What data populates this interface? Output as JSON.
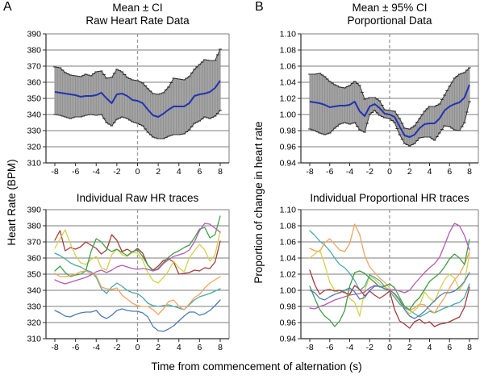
{
  "figure": {
    "panel_a_label": "A",
    "panel_b_label": "B",
    "x_axis_label": "Time from commencement of alternation (s)",
    "left_y_axis_label": "Heart Rate (BPM)",
    "right_y_axis_label": "Proportion of change in heart rate",
    "grid_color": "#7d7d7d",
    "axis_color": "#2b2b2b",
    "zero_line_color": "#9a9a9a"
  },
  "chart_data": [
    {
      "id": "mean-raw",
      "type": "line",
      "panel": "A-top",
      "title_lines": [
        "Mean ± CI",
        "Raw Heart Rate Data"
      ],
      "ylim": [
        310,
        390
      ],
      "yticks": [
        "390",
        "380",
        "370",
        "360",
        "350",
        "340",
        "330",
        "320",
        "310"
      ],
      "xlim": [
        -8,
        8
      ],
      "xticks": [
        "-8",
        "-6",
        "-4",
        "-2",
        "0",
        "2",
        "4",
        "6",
        "8"
      ],
      "zero_dashed_line": true,
      "band_fill": "#a4a4a4",
      "band_bar_color": "#8e8e8e",
      "band_cap_color": "#1f1f1f",
      "x": [
        -8,
        -7.5,
        -7,
        -6.5,
        -6,
        -5.5,
        -5,
        -4.5,
        -4,
        -3.5,
        -3,
        -2.5,
        -2,
        -1.5,
        -1,
        -0.5,
        0,
        0.5,
        1,
        1.5,
        2,
        2.5,
        3,
        3.5,
        4,
        4.5,
        5,
        5.5,
        6,
        6.5,
        7,
        7.5,
        8
      ],
      "series": [
        {
          "name": "mean",
          "color": "#2233b0",
          "values": [
            354,
            353.5,
            353,
            352.5,
            352,
            351,
            351.5,
            351.5,
            352,
            353.5,
            350,
            347,
            352.5,
            353,
            351.5,
            349,
            348.5,
            347,
            343,
            339.5,
            338.5,
            340.5,
            343,
            345,
            345,
            345,
            347,
            351.5,
            352.5,
            353,
            354,
            356.5,
            361
          ]
        },
        {
          "name": "upper_ci",
          "color": "#3a3a3a",
          "values": [
            369.5,
            369,
            366,
            364.5,
            364,
            363.5,
            365,
            364,
            366.5,
            367,
            362.5,
            363,
            368,
            366.5,
            363,
            361.5,
            361,
            359.5,
            356,
            353,
            352.5,
            353.5,
            357,
            362.5,
            362,
            361.5,
            363.5,
            368,
            371,
            374,
            373.5,
            373.5,
            380.5
          ]
        },
        {
          "name": "lower_ci",
          "color": "#3a3a3a",
          "values": [
            340,
            339.5,
            338.5,
            337.5,
            338.5,
            338.5,
            339.5,
            340,
            339.5,
            340,
            335,
            333,
            337,
            338.5,
            337.5,
            335.5,
            334.5,
            333,
            329,
            326,
            325,
            325,
            326.5,
            327.5,
            327.5,
            328,
            330.5,
            334.5,
            336,
            338.5,
            337.5,
            339,
            342.5
          ]
        }
      ]
    },
    {
      "id": "mean-proportional",
      "type": "line",
      "panel": "B-top",
      "title_lines": [
        "Mean ± 95% CI",
        "Porportional Data"
      ],
      "ylim": [
        0.94,
        1.1
      ],
      "yticks": [
        "1.10",
        "1.08",
        "1.06",
        "1.04",
        "1.02",
        "1.00",
        "0.98",
        "0.96",
        "0.94"
      ],
      "xlim": [
        -8,
        8
      ],
      "xticks": [
        "-8",
        "-6",
        "-4",
        "-2",
        "0",
        "2",
        "4",
        "6",
        "8"
      ],
      "zero_dashed_line": true,
      "band_fill": "#a4a4a4",
      "band_bar_color": "#8e8e8e",
      "band_cap_color": "#1f1f1f",
      "x": [
        -8,
        -7.5,
        -7,
        -6.5,
        -6,
        -5.5,
        -5,
        -4.5,
        -4,
        -3.5,
        -3,
        -2.5,
        -2,
        -1.5,
        -1,
        -0.5,
        0,
        0.5,
        1,
        1.5,
        2,
        2.5,
        3,
        3.5,
        4,
        4.5,
        5,
        5.5,
        6,
        6.5,
        7,
        7.5,
        8
      ],
      "series": [
        {
          "name": "mean",
          "color": "#2233b0",
          "values": [
            1.016,
            1.015,
            1.014,
            1.012,
            1.009,
            1.01,
            1.011,
            1.011,
            1.012,
            1.016,
            1.004,
            0.998,
            1.01,
            1.013,
            1.008,
            1.001,
            1.0,
            0.997,
            0.985,
            0.974,
            0.972,
            0.975,
            0.983,
            0.988,
            0.989,
            0.989,
            0.995,
            1.005,
            1.01,
            1.013,
            1.015,
            1.021,
            1.037
          ]
        },
        {
          "name": "upper_ci",
          "color": "#3a3a3a",
          "values": [
            1.05,
            1.05,
            1.051,
            1.047,
            1.041,
            1.037,
            1.034,
            1.033,
            1.036,
            1.041,
            1.036,
            1.019,
            1.021,
            1.021,
            1.017,
            1.006,
            1.005,
            1.004,
            0.995,
            0.983,
            0.982,
            0.986,
            0.995,
            1.004,
            1.01,
            1.01,
            1.013,
            1.024,
            1.035,
            1.045,
            1.05,
            1.052,
            1.058
          ]
        },
        {
          "name": "lower_ci",
          "color": "#3a3a3a",
          "values": [
            0.982,
            0.98,
            0.977,
            0.975,
            0.977,
            0.983,
            0.988,
            0.99,
            0.988,
            0.99,
            0.981,
            0.978,
            1.0,
            1.005,
            0.999,
            0.996,
            0.995,
            0.99,
            0.975,
            0.964,
            0.961,
            0.964,
            0.971,
            0.972,
            0.972,
            0.968,
            0.977,
            0.986,
            0.985,
            0.981,
            0.98,
            0.99,
            1.016
          ]
        }
      ]
    },
    {
      "id": "individual-raw",
      "type": "line",
      "panel": "A-bottom",
      "title_lines": [
        "Individual Raw HR traces"
      ],
      "ylim": [
        310,
        390
      ],
      "yticks": [
        "390",
        "380",
        "370",
        "360",
        "350",
        "340",
        "330",
        "320",
        "310"
      ],
      "xlim": [
        -8,
        8
      ],
      "xticks": [
        "-8",
        "-6",
        "-4",
        "-2",
        "0",
        "2",
        "4",
        "6",
        "8"
      ],
      "zero_dashed_line": true,
      "x": [
        -8,
        -7.5,
        -7,
        -6.5,
        -6,
        -5.5,
        -5,
        -4.5,
        -4,
        -3.5,
        -3,
        -2.5,
        -2,
        -1.5,
        -1,
        -0.5,
        0,
        0.5,
        1,
        1.5,
        2,
        2.5,
        3,
        3.5,
        4,
        4.5,
        5,
        5.5,
        6,
        6.5,
        7,
        7.5,
        8
      ],
      "series": [
        {
          "name": "trace-red",
          "color": "#a43c3c",
          "values": [
            371,
            377,
            364.5,
            366.5,
            365.5,
            367,
            370,
            368,
            366,
            362.5,
            365,
            374.5,
            371,
            364,
            365.5,
            363.5,
            366,
            363,
            355.5,
            352.5,
            355,
            358.5,
            359.5,
            357.5,
            350,
            350.5,
            351,
            352.5,
            352,
            354,
            353.5,
            357.5,
            370.5
          ]
        },
        {
          "name": "trace-yellow",
          "color": "#d6d04e",
          "values": [
            366,
            372,
            377.5,
            369,
            361.5,
            357,
            356,
            359,
            361,
            354,
            352.5,
            362,
            365.5,
            362,
            361,
            363.5,
            363,
            358.5,
            351,
            346,
            344.5,
            348,
            352,
            358,
            354,
            351.5,
            360,
            364.5,
            368.5,
            365,
            358,
            362,
            376.5
          ]
        },
        {
          "name": "trace-green",
          "color": "#3f9f46",
          "values": [
            352,
            355,
            351,
            348.5,
            349.5,
            350,
            352,
            364,
            372,
            370,
            366,
            364,
            365.5,
            363.5,
            361.5,
            364,
            365,
            361,
            355.5,
            352,
            353.5,
            357,
            360.5,
            363,
            364.5,
            366.5,
            368,
            372.5,
            378,
            379,
            372.5,
            374.5,
            386
          ]
        },
        {
          "name": "trace-teal",
          "color": "#4aa9a9",
          "values": [
            363,
            361.5,
            359.5,
            357,
            355.5,
            354.5,
            352.5,
            351.5,
            348,
            341,
            338,
            342,
            344.5,
            342.5,
            340,
            338.5,
            338,
            335.5,
            332,
            330.5,
            330,
            330.5,
            331,
            330,
            329,
            328,
            331,
            334,
            336,
            337,
            338,
            339.5,
            341
          ]
        },
        {
          "name": "trace-orange",
          "color": "#f3a35f",
          "values": [
            350.5,
            348.5,
            348.5,
            349,
            350,
            351.5,
            352,
            350.5,
            349,
            342,
            341,
            340.5,
            341.5,
            337,
            334.5,
            332,
            330.5,
            330,
            330,
            328,
            325,
            328.5,
            333,
            334,
            330,
            328,
            331.5,
            335.5,
            337.5,
            341.5,
            344.5,
            346.5,
            348.5
          ]
        },
        {
          "name": "trace-magenta",
          "color": "#b55ab5",
          "values": [
            346.5,
            345,
            344,
            345,
            346,
            347,
            348,
            349.5,
            351.5,
            352.5,
            351,
            352.5,
            354.5,
            355.5,
            354.5,
            353.5,
            353,
            353.5,
            353,
            352,
            353,
            356.5,
            359,
            361,
            362,
            363,
            365,
            370,
            377,
            381.5,
            381,
            378.5,
            376
          ]
        },
        {
          "name": "trace-blue",
          "color": "#4d7cb5",
          "values": [
            327.5,
            326,
            324,
            323.5,
            325,
            326,
            326.5,
            326.5,
            327.5,
            324,
            322.5,
            324.5,
            327.5,
            328.5,
            327.5,
            327,
            327,
            326,
            323.5,
            317.5,
            315,
            314.5,
            316,
            318,
            321,
            324,
            326.5,
            326.5,
            324.5,
            325.5,
            327.5,
            330.5,
            334
          ]
        }
      ]
    },
    {
      "id": "individual-proportional",
      "type": "line",
      "panel": "B-bottom",
      "title_lines": [
        "Individual Proportional HR traces"
      ],
      "ylim": [
        0.94,
        1.1
      ],
      "yticks": [
        "1.10",
        "1.08",
        "1.06",
        "1.04",
        "1.02",
        "1.00",
        "0.98",
        "0.96",
        "0.94"
      ],
      "xlim": [
        -8,
        8
      ],
      "xticks": [
        "-8",
        "-6",
        "-4",
        "-2",
        "0",
        "2",
        "4",
        "6",
        "8"
      ],
      "zero_dashed_line": true,
      "x": [
        -8,
        -7.5,
        -7,
        -6.5,
        -6,
        -5.5,
        -5,
        -4.5,
        -4,
        -3.5,
        -3,
        -2.5,
        -2,
        -1.5,
        -1,
        -0.5,
        0,
        0.5,
        1,
        1.5,
        2,
        2.5,
        3,
        3.5,
        4,
        4.5,
        5,
        5.5,
        6,
        6.5,
        7,
        7.5,
        8
      ],
      "series": [
        {
          "name": "trace-teal",
          "color": "#4aa9a9",
          "values": [
            1.074,
            1.068,
            1.061,
            1.056,
            1.049,
            1.04,
            1.032,
            1.028,
            1.021,
            1.012,
            1.0,
            1.005,
            1.019,
            1.016,
            1.012,
            1.005,
            0.999,
            0.991,
            0.983,
            0.978,
            0.975,
            0.971,
            0.967,
            0.97,
            0.974,
            0.972,
            0.975,
            0.978,
            0.98,
            0.983,
            0.985,
            0.991,
            1.008
          ]
        },
        {
          "name": "trace-orange",
          "color": "#f3a35f",
          "values": [
            1.052,
            1.049,
            1.048,
            1.059,
            1.064,
            1.057,
            1.05,
            1.048,
            1.058,
            1.082,
            1.069,
            1.043,
            1.029,
            1.022,
            1.015,
            1.01,
            1.003,
            0.994,
            0.986,
            0.98,
            0.975,
            0.978,
            0.983,
            0.982,
            0.976,
            0.972,
            0.982,
            0.991,
            1.003,
            1.013,
            1.02,
            1.032,
            1.048
          ]
        },
        {
          "name": "trace-yellow",
          "color": "#d6d04e",
          "values": [
            1.04,
            1.045,
            1.05,
            1.032,
            1.01,
            1.0,
            0.997,
            0.999,
            0.99,
            0.985,
            0.968,
            1.0,
            1.017,
            1.014,
            1.008,
            1.004,
            1.001,
            0.996,
            0.986,
            0.976,
            0.971,
            0.975,
            0.981,
            0.998,
            0.99,
            0.986,
            1.001,
            1.013,
            1.02,
            1.015,
            1.001,
            1.01,
            1.045
          ]
        },
        {
          "name": "trace-red",
          "color": "#a43c3c",
          "values": [
            1.025,
            1.007,
            0.995,
            1.0,
            1.001,
            0.999,
            1.0,
            0.997,
            0.995,
            1.006,
            1.001,
            0.993,
            0.999,
            0.994,
            0.99,
            0.994,
            0.999,
            0.976,
            0.962,
            0.958,
            0.953,
            0.961,
            0.964,
            0.959,
            0.961,
            0.955,
            0.958,
            0.959,
            0.961,
            0.964,
            0.967,
            0.979,
            1.004
          ]
        },
        {
          "name": "trace-green",
          "color": "#3f9f46",
          "values": [
            1.005,
            0.99,
            0.976,
            0.968,
            0.963,
            0.955,
            0.962,
            0.975,
            1.005,
            1.022,
            1.024,
            1.021,
            1.015,
            1.01,
            1.004,
            1.005,
            1.008,
            1.003,
            0.991,
            0.98,
            0.976,
            0.985,
            0.991,
            1.001,
            1.011,
            1.016,
            1.021,
            1.029,
            1.039,
            1.045,
            1.04,
            1.032,
            1.063
          ]
        },
        {
          "name": "trace-magenta",
          "color": "#b55ab5",
          "values": [
            0.978,
            0.977,
            0.98,
            0.982,
            0.985,
            0.988,
            0.99,
            0.992,
            0.994,
            0.995,
            0.996,
            0.998,
            1.003,
            1.006,
            1.005,
            1.002,
            1.0,
            1.001,
            0.999,
            0.997,
            1.0,
            1.008,
            1.015,
            1.022,
            1.028,
            1.033,
            1.041,
            1.056,
            1.072,
            1.083,
            1.08,
            1.068,
            1.05
          ]
        },
        {
          "name": "trace-blue",
          "color": "#4d7cb5",
          "values": [
            1.0,
            0.997,
            0.99,
            0.988,
            0.992,
            0.995,
            0.997,
            1.0,
            1.003,
            0.998,
            0.989,
            0.991,
            1.0,
            1.005,
            1.005,
            1.002,
            1.0,
            0.996,
            0.988,
            0.976,
            0.968,
            0.965,
            0.969,
            0.974,
            0.981,
            0.987,
            0.993,
            0.997,
            0.997,
            0.999,
            1.004,
            1.011,
            1.022
          ]
        }
      ]
    }
  ]
}
